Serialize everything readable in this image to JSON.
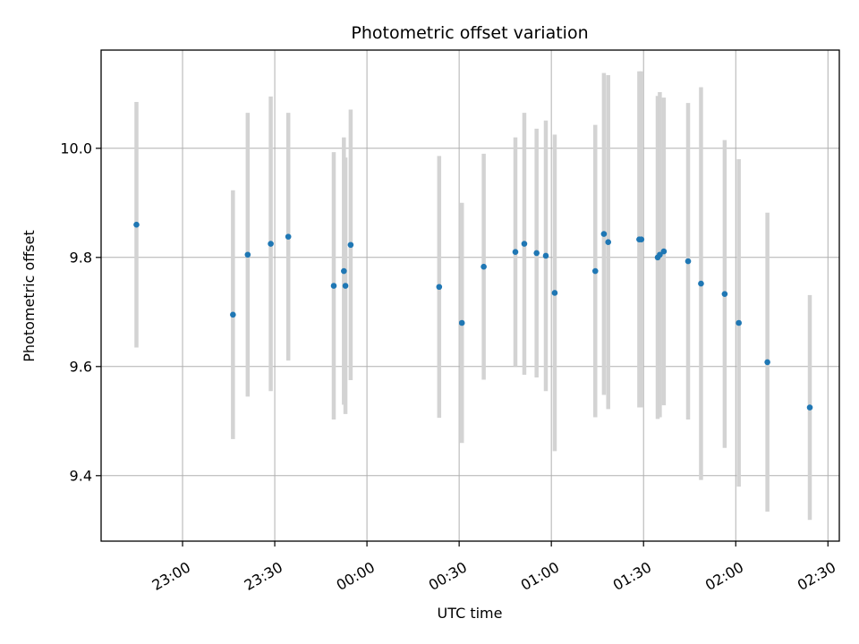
{
  "chart_data": {
    "type": "scatter",
    "title": "Photometric offset variation",
    "xlabel": "UTC time",
    "ylabel": "Photometric offset",
    "x_unit": "minutes",
    "x_tick_values": [
      -60,
      -30,
      0,
      30,
      60,
      90,
      120,
      150
    ],
    "x_tick_labels": [
      "23:00",
      "23:30",
      "00:00",
      "00:30",
      "01:00",
      "01:30",
      "02:00",
      "02:30"
    ],
    "y_ticks": [
      9.4,
      9.6,
      9.8,
      10.0
    ],
    "xlim": [
      -86.5,
      153.7
    ],
    "ylim": [
      9.28,
      10.18
    ],
    "grid": true,
    "point_color": "#1f77b4",
    "errorbar_color": "#d3d3d3",
    "points": [
      {
        "x": -75.0,
        "y": 9.86,
        "err": 0.225
      },
      {
        "x": -43.6,
        "y": 9.695,
        "err": 0.228
      },
      {
        "x": -38.8,
        "y": 9.805,
        "err": 0.26
      },
      {
        "x": -31.3,
        "y": 9.825,
        "err": 0.27
      },
      {
        "x": -25.6,
        "y": 9.838,
        "err": 0.227
      },
      {
        "x": -10.8,
        "y": 9.748,
        "err": 0.245
      },
      {
        "x": -7.5,
        "y": 9.775,
        "err": 0.245
      },
      {
        "x": -7.0,
        "y": 9.748,
        "err": 0.235
      },
      {
        "x": -5.3,
        "y": 9.823,
        "err": 0.248
      },
      {
        "x": 23.5,
        "y": 9.746,
        "err": 0.24
      },
      {
        "x": 30.9,
        "y": 9.68,
        "err": 0.22
      },
      {
        "x": 38.0,
        "y": 9.783,
        "err": 0.207
      },
      {
        "x": 48.3,
        "y": 9.81,
        "err": 0.21
      },
      {
        "x": 51.2,
        "y": 9.825,
        "err": 0.24
      },
      {
        "x": 55.2,
        "y": 9.808,
        "err": 0.228
      },
      {
        "x": 58.2,
        "y": 9.803,
        "err": 0.248
      },
      {
        "x": 61.1,
        "y": 9.735,
        "err": 0.29
      },
      {
        "x": 74.3,
        "y": 9.775,
        "err": 0.268
      },
      {
        "x": 77.1,
        "y": 9.843,
        "err": 0.295
      },
      {
        "x": 78.5,
        "y": 9.828,
        "err": 0.306
      },
      {
        "x": 88.6,
        "y": 9.833,
        "err": 0.308
      },
      {
        "x": 89.3,
        "y": 9.833,
        "err": 0.308
      },
      {
        "x": 94.6,
        "y": 9.8,
        "err": 0.296
      },
      {
        "x": 95.3,
        "y": 9.805,
        "err": 0.298
      },
      {
        "x": 96.6,
        "y": 9.811,
        "err": 0.282
      },
      {
        "x": 104.5,
        "y": 9.793,
        "err": 0.29
      },
      {
        "x": 108.7,
        "y": 9.752,
        "err": 0.36
      },
      {
        "x": 116.4,
        "y": 9.733,
        "err": 0.282
      },
      {
        "x": 121.0,
        "y": 9.68,
        "err": 0.3
      },
      {
        "x": 130.3,
        "y": 9.608,
        "err": 0.274
      },
      {
        "x": 144.1,
        "y": 9.525,
        "err": 0.206
      }
    ]
  }
}
